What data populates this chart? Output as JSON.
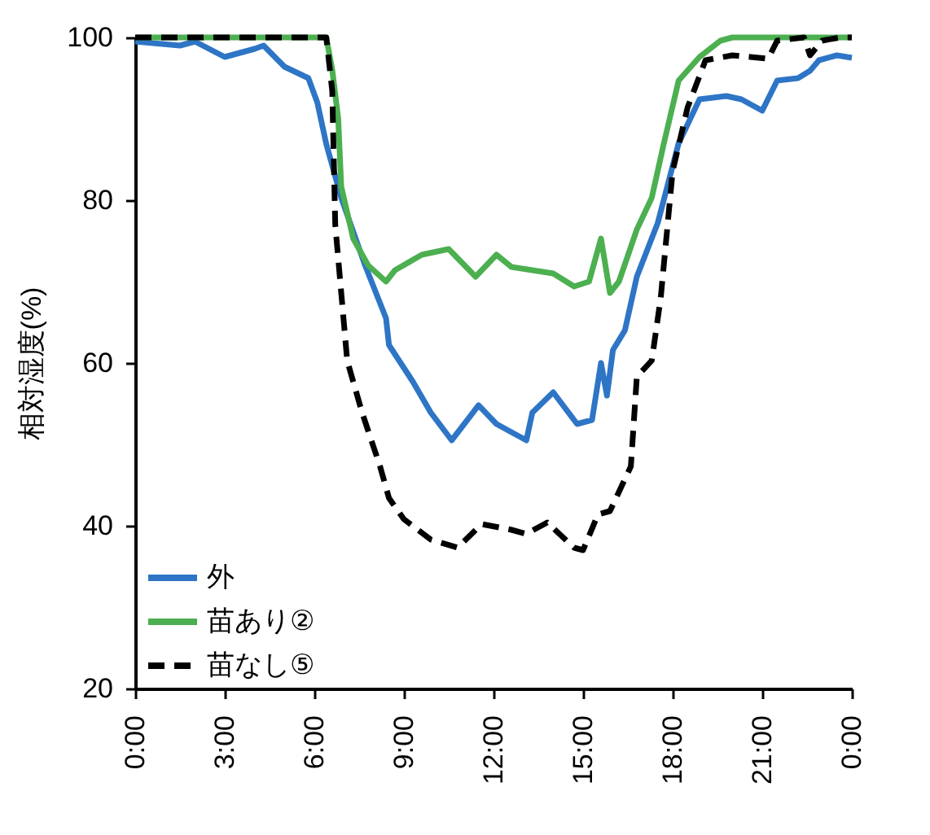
{
  "chart_data": {
    "type": "line",
    "ylabel": "相対湿度(%)",
    "xlim": [
      0,
      24
    ],
    "ylim": [
      20,
      100
    ],
    "xticks": [
      {
        "value": 0,
        "label": "0:00"
      },
      {
        "value": 3,
        "label": "3:00"
      },
      {
        "value": 6,
        "label": "6:00"
      },
      {
        "value": 9,
        "label": "9:00"
      },
      {
        "value": 12,
        "label": "12:00"
      },
      {
        "value": 15,
        "label": "15:00"
      },
      {
        "value": 18,
        "label": "18:00"
      },
      {
        "value": 21,
        "label": "21:00"
      },
      {
        "value": 24,
        "label": "0:00"
      }
    ],
    "yticks": [
      20,
      40,
      60,
      80,
      100
    ],
    "grid": false,
    "legend": "bottom left",
    "marker": "none",
    "series": [
      {
        "name": "外",
        "color": "#2e75c6",
        "line_style": "solid",
        "x": [
          0,
          1.5,
          2,
          3,
          4,
          4.3,
          5,
          5.8,
          6.1,
          6.4,
          6.9,
          7.7,
          8.4,
          8.5,
          9.3,
          9.9,
          10.6,
          11.5,
          12.1,
          13.1,
          13.3,
          14,
          14.8,
          15.3,
          15.6,
          15.8,
          16,
          16.4,
          16.8,
          17.5,
          18.2,
          18.9,
          19.8,
          20.3,
          21,
          21.5,
          22.2,
          22.6,
          22.9,
          23.5,
          24
        ],
        "values": [
          99.5,
          99,
          99.5,
          97.6,
          98.6,
          99,
          96.4,
          95,
          92,
          86.9,
          80.3,
          72,
          65.5,
          62.2,
          57.7,
          53.9,
          50.5,
          54.8,
          52.5,
          50.5,
          53.9,
          56.4,
          52.5,
          53,
          60,
          56,
          61.6,
          64,
          70.6,
          77.2,
          87,
          92.4,
          92.8,
          92.4,
          91,
          94.7,
          95,
          95.9,
          97.2,
          97.8,
          97.5
        ]
      },
      {
        "name": "苗あり②",
        "color": "#4caf50",
        "line_style": "solid",
        "x": [
          0,
          6.4,
          6.6,
          6.8,
          6.9,
          7.3,
          7.8,
          8.4,
          8.7,
          9.6,
          10.5,
          11.4,
          12.1,
          12.6,
          13.3,
          14,
          14.7,
          15.2,
          15.6,
          15.9,
          16.2,
          16.8,
          17.3,
          17.7,
          18.2,
          18.9,
          19.6,
          20,
          24
        ],
        "values": [
          100,
          100,
          96,
          90,
          81.7,
          75.3,
          72,
          70,
          71.4,
          73.3,
          74,
          70.6,
          73.3,
          71.8,
          71.4,
          71,
          69.4,
          70,
          75.3,
          68.6,
          70,
          76.4,
          80.3,
          86.9,
          94.7,
          97.6,
          99.6,
          100,
          100
        ]
      },
      {
        "name": "苗なし⑤",
        "color": "#000000",
        "line_style": "dashed",
        "x": [
          0,
          6.4,
          6.6,
          6.7,
          7.1,
          7.6,
          8.2,
          8.5,
          9,
          9.9,
          10.8,
          11.6,
          12.6,
          13.1,
          13.8,
          14.7,
          15,
          15.5,
          15.9,
          16.6,
          16.8,
          17.3,
          17.6,
          18,
          18.5,
          19.1,
          20,
          20.6,
          21.2,
          21.5,
          22.4,
          22.6,
          23,
          23.6,
          24
        ],
        "values": [
          100,
          100,
          93.4,
          77,
          60.3,
          53.9,
          47.3,
          43.4,
          40.8,
          38.3,
          37.3,
          40.2,
          39.5,
          39,
          40.4,
          37.3,
          37,
          41.4,
          41.8,
          47.3,
          58.3,
          60.3,
          68,
          83.6,
          91.4,
          97.2,
          97.8,
          97.6,
          97.4,
          99.6,
          100,
          97.8,
          99.6,
          100,
          100
        ]
      }
    ]
  }
}
